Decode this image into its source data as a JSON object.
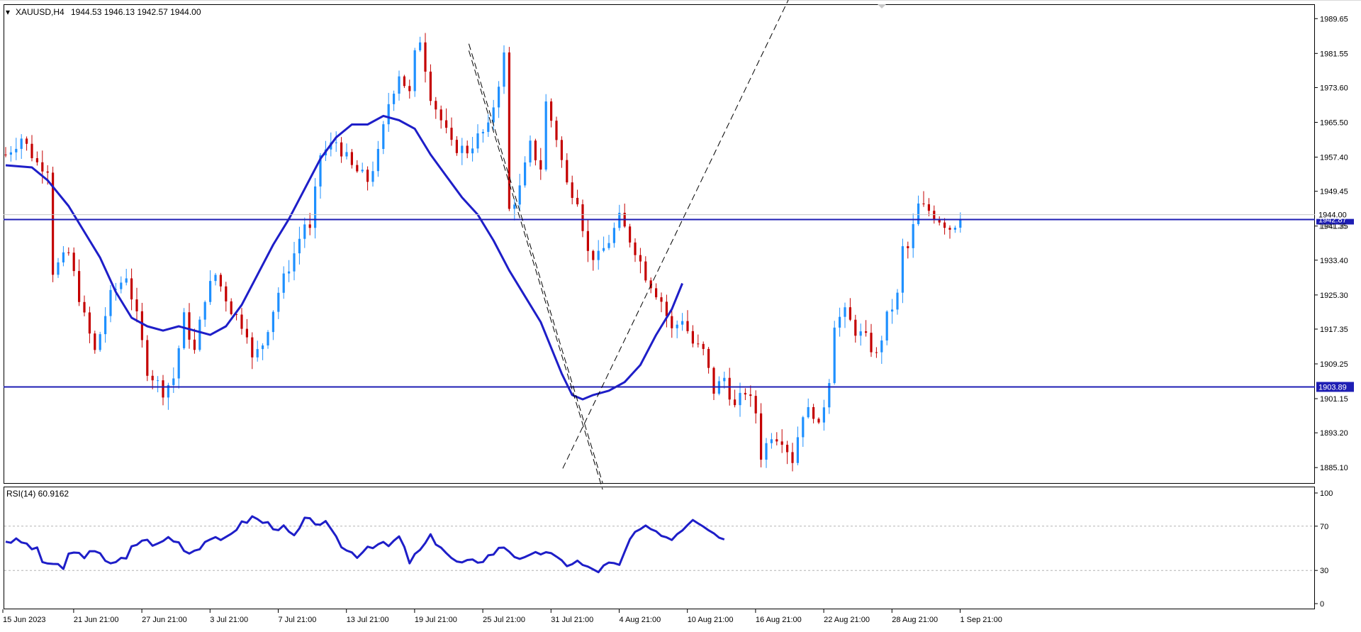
{
  "chart_data": [
    {
      "type": "candlestick",
      "header": {
        "marker": "▾",
        "symbol": "XAUUSD,H4",
        "ohlc": "1944.53 1946.13 1942.57 1944.00"
      },
      "ylim": [
        1881.5,
        1993.0
      ],
      "y_ticks": [
        "1989.65",
        "1981.55",
        "1973.60",
        "1965.50",
        "1957.40",
        "1949.45",
        "1941.35",
        "1933.40",
        "1925.30",
        "1917.35",
        "1909.25",
        "1901.15",
        "1893.20",
        "1885.10"
      ],
      "x_ticks": [
        "15 Jun 2023",
        "21 Jun 21:00",
        "27 Jun 21:00",
        "3 Jul 21:00",
        "7 Jul 21:00",
        "13 Jul 21:00",
        "19 Jul 21:00",
        "25 Jul 21:00",
        "31 Jul 21:00",
        "4 Aug 21:00",
        "10 Aug 21:00",
        "16 Aug 21:00",
        "22 Aug 21:00",
        "28 Aug 21:00",
        "1 Sep 21:00"
      ],
      "x_tick_positions": [
        0,
        13.5,
        26.5,
        39.5,
        52.5,
        65.5,
        78.5,
        91.5,
        104.5,
        117.5,
        130.5,
        143.5,
        156.5,
        169.5,
        182.5
      ],
      "price_anchors": [
        [
          0,
          1958
        ],
        [
          3,
          1962
        ],
        [
          6,
          1956
        ],
        [
          8,
          1955
        ],
        [
          9,
          1931
        ],
        [
          12,
          1935
        ],
        [
          15,
          1920
        ],
        [
          17,
          1912
        ],
        [
          20,
          1925
        ],
        [
          23,
          1930
        ],
        [
          25,
          1920
        ],
        [
          27,
          1908
        ],
        [
          30,
          1903
        ],
        [
          32,
          1906
        ],
        [
          34,
          1920
        ],
        [
          36,
          1912
        ],
        [
          38,
          1925
        ],
        [
          40,
          1930
        ],
        [
          43,
          1922
        ],
        [
          46,
          1917
        ],
        [
          47,
          1910
        ],
        [
          49,
          1914
        ],
        [
          52,
          1926
        ],
        [
          55,
          1935
        ],
        [
          57,
          1942
        ],
        [
          58,
          1940
        ],
        [
          60,
          1958
        ],
        [
          63,
          1961
        ],
        [
          66,
          1955
        ],
        [
          69,
          1952
        ],
        [
          71,
          1958
        ],
        [
          73,
          1970
        ],
        [
          75,
          1977
        ],
        [
          77,
          1972
        ],
        [
          78,
          1981
        ],
        [
          79,
          1985
        ],
        [
          81,
          1972
        ],
        [
          83,
          1966
        ],
        [
          85,
          1960
        ],
        [
          88,
          1959
        ],
        [
          90,
          1962
        ],
        [
          92,
          1964
        ],
        [
          94,
          1975
        ],
        [
          95,
          1981
        ],
        [
          96,
          1945
        ],
        [
          98,
          1950
        ],
        [
          100,
          1960
        ],
        [
          102,
          1955
        ],
        [
          103,
          1970
        ],
        [
          105,
          1962
        ],
        [
          107,
          1951
        ],
        [
          109,
          1948
        ],
        [
          111,
          1935
        ],
        [
          113,
          1934
        ],
        [
          115,
          1938
        ],
        [
          117,
          1943
        ],
        [
          120,
          1936
        ],
        [
          122,
          1930
        ],
        [
          125,
          1924
        ],
        [
          127,
          1917
        ],
        [
          129,
          1920
        ],
        [
          131,
          1914
        ],
        [
          133,
          1912
        ],
        [
          135,
          1903
        ],
        [
          137,
          1906
        ],
        [
          139,
          1899
        ],
        [
          141,
          1903
        ],
        [
          143,
          1898
        ],
        [
          144,
          1888
        ],
        [
          146,
          1893
        ],
        [
          148,
          1892
        ],
        [
          150,
          1887
        ],
        [
          152,
          1898
        ],
        [
          154,
          1898
        ],
        [
          155,
          1894
        ],
        [
          157,
          1906
        ],
        [
          158,
          1919
        ],
        [
          160,
          1921
        ],
        [
          162,
          1917
        ],
        [
          164,
          1915
        ],
        [
          166,
          1911
        ],
        [
          168,
          1920
        ],
        [
          170,
          1925
        ],
        [
          171,
          1936
        ],
        [
          172,
          1936
        ],
        [
          174,
          1946
        ],
        [
          176,
          1945
        ],
        [
          178,
          1943
        ],
        [
          180,
          1941
        ],
        [
          181,
          1942
        ],
        [
          182,
          1944
        ]
      ],
      "candle_count": 183,
      "moving_average": [
        [
          0,
          1955.5
        ],
        [
          5,
          1955
        ],
        [
          8,
          1952
        ],
        [
          12,
          1946
        ],
        [
          15,
          1940
        ],
        [
          18,
          1934
        ],
        [
          21,
          1926
        ],
        [
          24,
          1920
        ],
        [
          27,
          1918
        ],
        [
          30,
          1917
        ],
        [
          33,
          1918
        ],
        [
          36,
          1917
        ],
        [
          39,
          1916
        ],
        [
          42,
          1918
        ],
        [
          45,
          1923
        ],
        [
          48,
          1930
        ],
        [
          51,
          1937
        ],
        [
          54,
          1943
        ],
        [
          57,
          1950
        ],
        [
          60,
          1957
        ],
        [
          63,
          1962
        ],
        [
          66,
          1965
        ],
        [
          69,
          1965
        ],
        [
          72,
          1967
        ],
        [
          75,
          1966
        ],
        [
          78,
          1964
        ],
        [
          81,
          1958
        ],
        [
          84,
          1953
        ],
        [
          87,
          1948
        ],
        [
          90,
          1944
        ],
        [
          93,
          1938
        ],
        [
          96,
          1931
        ],
        [
          99,
          1925
        ],
        [
          102,
          1919
        ],
        [
          104,
          1913
        ],
        [
          106,
          1907
        ],
        [
          108,
          1902
        ],
        [
          110,
          1901
        ],
        [
          112,
          1902
        ],
        [
          115,
          1903
        ],
        [
          118,
          1905
        ],
        [
          121,
          1909
        ],
        [
          124,
          1916
        ],
        [
          127,
          1922
        ],
        [
          129,
          1928
        ]
      ],
      "horizontal_levels": [
        {
          "value": 1942.87,
          "label": "1942.87",
          "color": "#1e1eb4"
        },
        {
          "value": 1903.89,
          "label": "1903.89",
          "color": "#1e1eb4"
        }
      ],
      "current_price": {
        "value": 1944.0,
        "label": "1944.00"
      },
      "hidden_axis_label": "1941.35",
      "trendlines": [
        {
          "style": "dashed",
          "from": [
            88.3,
            1983.8
          ],
          "to": [
            113.8,
            1881.5
          ]
        },
        {
          "style": "dashed",
          "from": [
            88.3,
            1982.2
          ],
          "to": [
            113.8,
            1880.0
          ]
        },
        {
          "style": "dashed",
          "from": [
            106.2,
            1884.9
          ],
          "to": [
            149.2,
            1994.0
          ]
        }
      ],
      "colors": {
        "bull": "#1e90ff",
        "bear": "#c40000",
        "ma": "#1e1ec8",
        "level": "#1e1eb4",
        "axis": "#000000",
        "grid": "#c8c8c8"
      }
    },
    {
      "type": "line",
      "title": "RSI(14) 60.9162",
      "ylim": [
        0,
        100
      ],
      "y_ticks": [
        "100",
        "70",
        "30",
        "0"
      ],
      "levels": [
        70,
        30
      ],
      "x_ticks": [
        "15 Jun 2023",
        "21 Jun 21:00",
        "27 Jun 21:00",
        "3 Jul 21:00",
        "7 Jul 21:00",
        "13 Jul 21:00",
        "19 Jul 21:00",
        "25 Jul 21:00",
        "31 Jul 21:00",
        "4 Aug 21:00",
        "10 Aug 21:00",
        "16 Aug 21:00",
        "22 Aug 21:00",
        "28 Aug 21:00",
        "1 Sep 21:00"
      ],
      "series": [
        {
          "color": "#1e1ec8",
          "points": [
            [
              0,
              57
            ],
            [
              3,
              56
            ],
            [
              6,
              48
            ],
            [
              7,
              38
            ],
            [
              9,
              36
            ],
            [
              11,
              30
            ],
            [
              12,
              46
            ],
            [
              15,
              44
            ],
            [
              17,
              46
            ],
            [
              20,
              38
            ],
            [
              23,
              40
            ],
            [
              24,
              50
            ],
            [
              26,
              58
            ],
            [
              29,
              53
            ],
            [
              31,
              60
            ],
            [
              33,
              55
            ],
            [
              35,
              46
            ],
            [
              37,
              52
            ],
            [
              39,
              60
            ],
            [
              41,
              55
            ],
            [
              43,
              65
            ],
            [
              45,
              72
            ],
            [
              47,
              78
            ],
            [
              49,
              74
            ],
            [
              51,
              70
            ],
            [
              53,
              68
            ],
            [
              55,
              60
            ],
            [
              57,
              75
            ],
            [
              59,
              74
            ],
            [
              61,
              72
            ],
            [
              63,
              58
            ],
            [
              65,
              48
            ],
            [
              67,
              44
            ],
            [
              69,
              52
            ],
            [
              71,
              54
            ],
            [
              73,
              52
            ],
            [
              75,
              60
            ],
            [
              77,
              38
            ],
            [
              79,
              48
            ],
            [
              81,
              60
            ],
            [
              83,
              52
            ],
            [
              85,
              40
            ],
            [
              87,
              36
            ],
            [
              89,
              38
            ],
            [
              91,
              40
            ],
            [
              93,
              46
            ],
            [
              95,
              52
            ],
            [
              97,
              44
            ],
            [
              99,
              40
            ],
            [
              101,
              44
            ],
            [
              103,
              48
            ],
            [
              105,
              40
            ],
            [
              107,
              36
            ],
            [
              109,
              38
            ],
            [
              111,
              32
            ],
            [
              113,
              30
            ],
            [
              115,
              36
            ],
            [
              117,
              34
            ],
            [
              119,
              58
            ],
            [
              121,
              66
            ],
            [
              123,
              70
            ],
            [
              125,
              62
            ],
            [
              127,
              60
            ],
            [
              129,
              68
            ],
            [
              131,
              78
            ],
            [
              133,
              72
            ],
            [
              135,
              64
            ],
            [
              137,
              58
            ]
          ]
        }
      ]
    }
  ]
}
